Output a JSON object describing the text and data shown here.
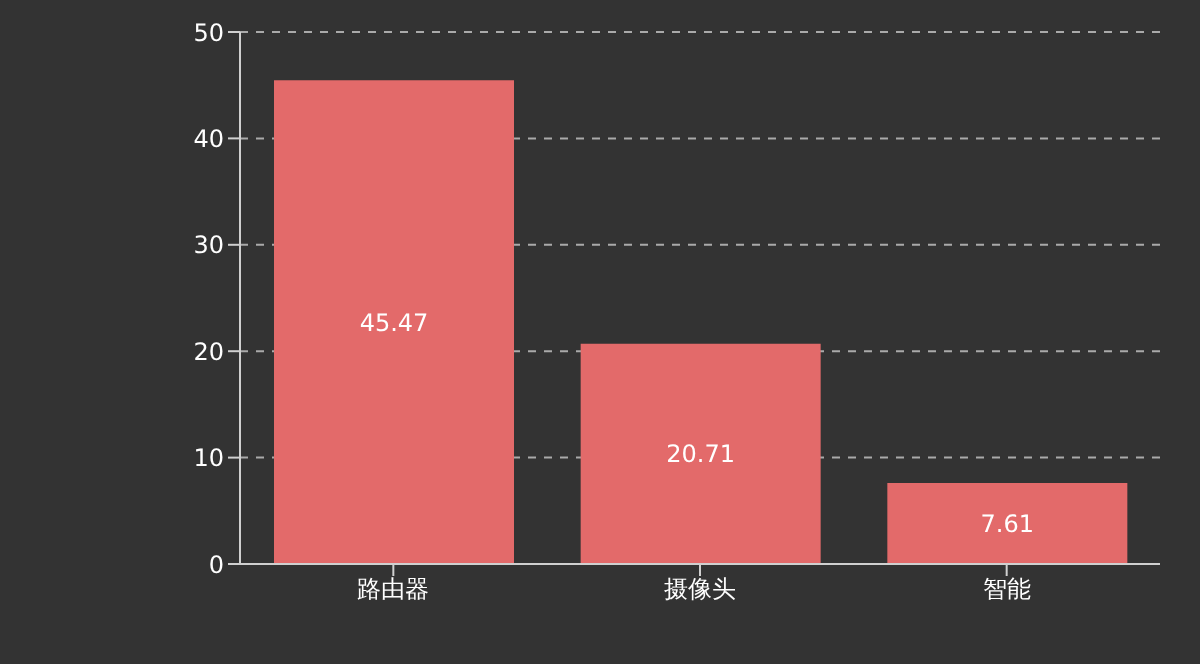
{
  "chart_data": {
    "type": "bar",
    "categories": [
      "路由器",
      "摄像头",
      "智能"
    ],
    "values": [
      45.47,
      20.71,
      7.61
    ],
    "color": "#e36a6a",
    "ylim": [
      0,
      50
    ],
    "yticks": [
      0,
      10,
      20,
      30,
      40,
      50
    ],
    "grid": "y",
    "data_labels": true
  }
}
